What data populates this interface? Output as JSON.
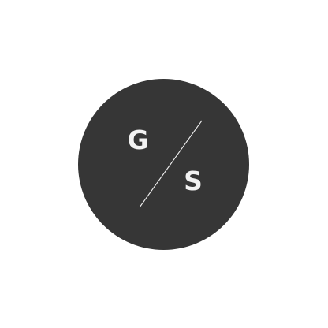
{
  "logo": {
    "letter_left": "G",
    "letter_right": "S",
    "colors": {
      "background": "#ffffff",
      "circle": "#363636",
      "foreground": "#f2f2f2"
    }
  }
}
